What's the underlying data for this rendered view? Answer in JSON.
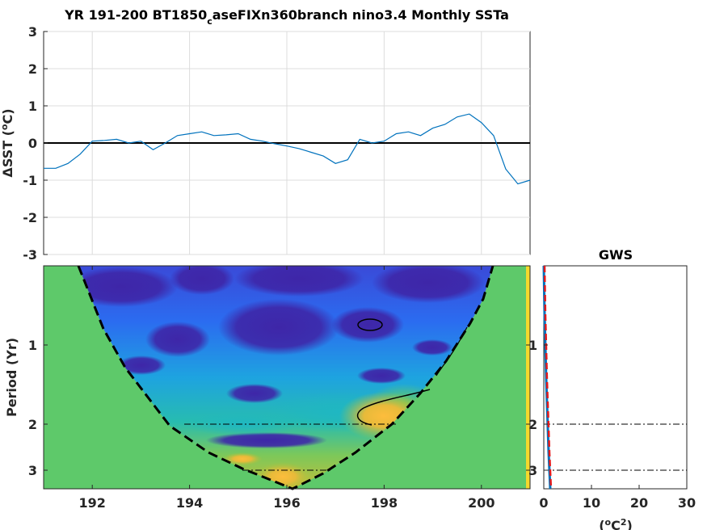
{
  "chart_data": [
    {
      "type": "line",
      "title": "YR 191-200 BT1850",
      "title_sub": "c",
      "title_rest": "aseFIXn360branch nino3.4 Monthly SSTa",
      "ylabel_prefix": "ΔSST (",
      "ylabel_sup": "o",
      "ylabel_suffix": "C)",
      "xlim": [
        191,
        201
      ],
      "ylim": [
        -3,
        3
      ],
      "yticks": [
        "-3",
        "-2",
        "-1",
        "0",
        "1",
        "2",
        "3"
      ],
      "xticks": [
        "192",
        "194",
        "196",
        "198",
        "200"
      ],
      "grid": true,
      "line_color": "#0072bd",
      "x": [
        191.0,
        191.25,
        191.5,
        191.75,
        192.0,
        192.25,
        192.5,
        192.75,
        193.0,
        193.25,
        193.5,
        193.75,
        194.0,
        194.25,
        194.5,
        194.75,
        195.0,
        195.25,
        195.5,
        195.75,
        196.0,
        196.25,
        196.5,
        196.75,
        197.0,
        197.25,
        197.5,
        197.75,
        198.0,
        198.25,
        198.5,
        198.75,
        199.0,
        199.25,
        199.5,
        199.75,
        200.0,
        200.25,
        200.5,
        200.75,
        201.0
      ],
      "values": [
        -0.68,
        -0.68,
        -0.55,
        -0.3,
        0.05,
        0.07,
        0.1,
        0.0,
        0.05,
        -0.18,
        0.0,
        0.2,
        0.25,
        0.3,
        0.2,
        0.22,
        0.25,
        0.1,
        0.05,
        -0.02,
        -0.08,
        -0.15,
        -0.25,
        -0.35,
        -0.55,
        -0.45,
        0.1,
        0.0,
        0.05,
        0.25,
        0.3,
        0.2,
        0.4,
        0.5,
        0.7,
        0.78,
        0.55,
        0.2,
        -0.7,
        -1.1,
        -1.0
      ]
    },
    {
      "type": "heatmap",
      "title": "",
      "ylabel": "Period (Yr)",
      "xlim": [
        191,
        201
      ],
      "xticks": [
        "192",
        "194",
        "196",
        "198",
        "200"
      ],
      "yticks": [
        "1",
        "2",
        "3"
      ],
      "colormap": "parula",
      "cone_of_influence": true,
      "reference_periods": [
        2,
        3
      ]
    },
    {
      "type": "line",
      "title": "GWS",
      "xlabel_prefix": "(",
      "xlabel_sup1": "o",
      "xlabel_mid": "C",
      "xlabel_sup2": "2",
      "xlabel_suffix": ")",
      "xlim": [
        0,
        30
      ],
      "xticks": [
        "0",
        "10",
        "20",
        "30"
      ],
      "yticks": [
        "1",
        "2",
        "3"
      ],
      "series_colors": [
        "#0072bd",
        "#e41a1c"
      ]
    }
  ]
}
